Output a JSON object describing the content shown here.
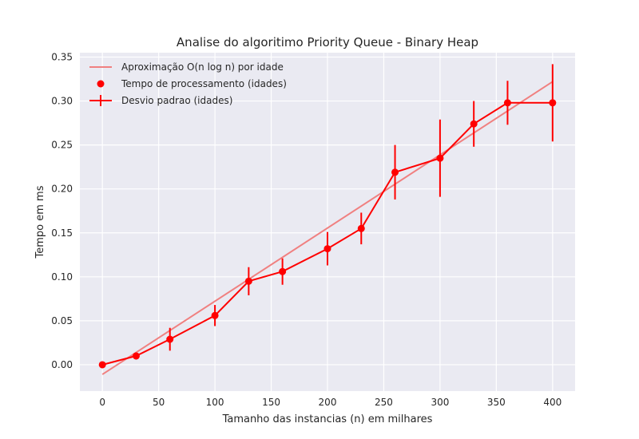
{
  "chart_data": {
    "type": "line",
    "title": "Analise do algoritimo Priority Queue - Binary Heap",
    "xlabel": "Tamanho das instancias (n) em milhares",
    "ylabel": "Tempo em ms",
    "xlim": [
      -20,
      420
    ],
    "ylim": [
      -0.03,
      0.355
    ],
    "xticks": [
      0,
      50,
      100,
      150,
      200,
      250,
      300,
      350,
      400
    ],
    "yticks": [
      0.0,
      0.05,
      0.1,
      0.15,
      0.2,
      0.25,
      0.3,
      0.35
    ],
    "ytick_labels": [
      "0.00",
      "0.05",
      "0.10",
      "0.15",
      "0.20",
      "0.25",
      "0.30",
      "0.35"
    ],
    "grid": true,
    "legend_position": "top-left",
    "colors": {
      "background": "#EAEAF2",
      "grid": "#FFFFFF",
      "fit_line": "#F08080",
      "data": "#FF0000"
    },
    "series": [
      {
        "name": "Aproximação O(n log n) por idade",
        "kind": "line",
        "x": [
          0,
          400
        ],
        "y": [
          -0.011,
          0.322
        ]
      },
      {
        "name": "Tempo de processamento (idades)",
        "kind": "scatter",
        "x": [
          0,
          30,
          60,
          100,
          130,
          160,
          200,
          230,
          260,
          300,
          330,
          360,
          400
        ],
        "y": [
          0.0,
          0.01,
          0.029,
          0.056,
          0.095,
          0.106,
          0.132,
          0.155,
          0.219,
          0.235,
          0.274,
          0.298,
          0.298
        ]
      },
      {
        "name": "Desvio padrao (idades)",
        "kind": "errorbar",
        "x": [
          0,
          30,
          60,
          100,
          130,
          160,
          200,
          230,
          260,
          300,
          330,
          360,
          400
        ],
        "y": [
          0.0,
          0.01,
          0.029,
          0.056,
          0.095,
          0.106,
          0.132,
          0.155,
          0.219,
          0.235,
          0.274,
          0.298,
          0.298
        ],
        "yerr": [
          0.001,
          0.004,
          0.013,
          0.012,
          0.016,
          0.015,
          0.019,
          0.018,
          0.031,
          0.044,
          0.026,
          0.025,
          0.044
        ]
      }
    ]
  }
}
